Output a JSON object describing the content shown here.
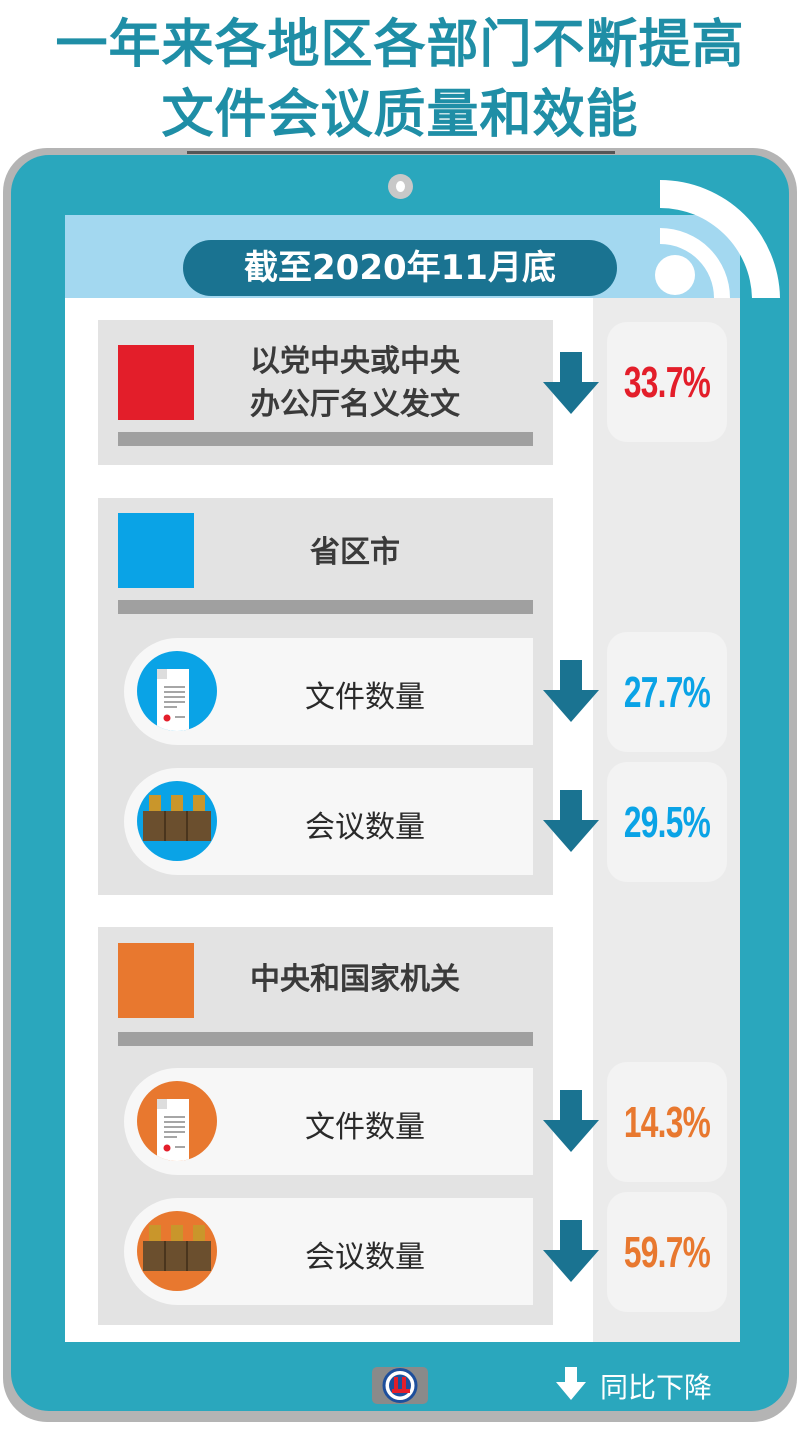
{
  "title": {
    "line1": "一年来各地区各部门不断提高",
    "line2": "文件会议质量和效能"
  },
  "banner": "截至2020年11月底",
  "colors": {
    "title": "#1f8ea6",
    "frame": "#2aa7bd",
    "banner": "#1a7391",
    "arrow": "#1a7391",
    "red": "#e31e2a",
    "blue": "#0aa3e6",
    "orange": "#e8782f"
  },
  "sections": [
    {
      "title": "以党中央或中央办公厅名义发文",
      "title_lines": [
        "以党中央或中央",
        "办公厅名义发文"
      ],
      "color": "#e31e2a",
      "value": "33.7%"
    },
    {
      "title": "省区市",
      "color": "#0aa3e6",
      "items": [
        {
          "label": "文件数量",
          "icon": "document-icon",
          "value": "27.7%"
        },
        {
          "label": "会议数量",
          "icon": "meeting-seats-icon",
          "value": "29.5%"
        }
      ]
    },
    {
      "title": "中央和国家机关",
      "color": "#e8782f",
      "items": [
        {
          "label": "文件数量",
          "icon": "document-icon",
          "value": "14.3%"
        },
        {
          "label": "会议数量",
          "icon": "meeting-seats-icon",
          "value": "59.7%"
        }
      ]
    }
  ],
  "legend": {
    "icon": "down-arrow-icon",
    "label": "同比下降"
  },
  "logo": "XINHUA"
}
